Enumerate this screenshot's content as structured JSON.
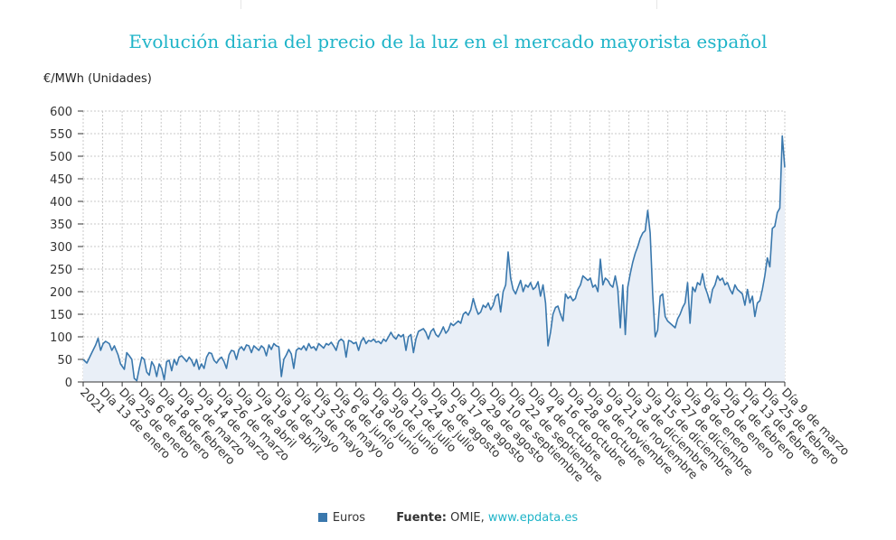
{
  "title": "Evolución diaria del precio de la luz en el mercado mayorista español",
  "unit_label": "€/MWh (Unidades)",
  "legend": {
    "series_label": "Euros",
    "source_label": "Fuente:",
    "source_name": "OMIE",
    "source_link": "www.epdata.es"
  },
  "colors": {
    "line": "#3a78ad",
    "area": "#e9eff7",
    "title": "#1fb4c8",
    "grid": "#c8c8c8"
  },
  "chart_data": {
    "type": "area",
    "title": "Evolución diaria del precio de la luz en el mercado mayorista español",
    "ylabel": "€/MWh (Unidades)",
    "xlabel": "",
    "ylim": [
      0,
      600
    ],
    "yticks": [
      0,
      50,
      100,
      150,
      200,
      250,
      300,
      350,
      400,
      450,
      500,
      550,
      600
    ],
    "grid": true,
    "legend": "bottom",
    "x_tick_labels": [
      "2021",
      "Día 13 de enero",
      "Día 25 de enero",
      "Día 6 de febrero",
      "Día 18 de febrero",
      "Día 2 de marzo",
      "Día 14 de marzo",
      "Día 26 de marzo",
      "Día 7 de abril",
      "Día 19 de abril",
      "Día 1 de mayo",
      "Día 13 de mayo",
      "Día 25 de mayo",
      "Día 6 de junio",
      "Día 18 de junio",
      "Día 30 de junio",
      "Día 12 de julio",
      "Día 24 de julio",
      "Día 5 de agosto",
      "Día 17 de agosto",
      "Día 29 de agosto",
      "Día 10 de septiembre",
      "Día 22 de septiembre",
      "Día 4 de octubre",
      "Día 16 de octubre",
      "Día 28 de octubre",
      "Día 9 de noviembre",
      "Día 21 de noviembre",
      "Día 3 de diciembre",
      "Día 15 de diciembre",
      "Día 27 de diciembre",
      "Día 8 de enero",
      "Día 20 de enero",
      "Día 1 de febrero",
      "Día 13 de febrero",
      "Día 25 de febrero",
      "Día 9 de marzo"
    ],
    "series": [
      {
        "name": "Euros",
        "points": [
          [
            0,
            50
          ],
          [
            3,
            42
          ],
          [
            7,
            65
          ],
          [
            10,
            82
          ],
          [
            12,
            97
          ],
          [
            14,
            70
          ],
          [
            16,
            85
          ],
          [
            18,
            90
          ],
          [
            21,
            85
          ],
          [
            23,
            70
          ],
          [
            25,
            80
          ],
          [
            28,
            60
          ],
          [
            30,
            40
          ],
          [
            33,
            28
          ],
          [
            35,
            65
          ],
          [
            37,
            58
          ],
          [
            39,
            50
          ],
          [
            41,
            8
          ],
          [
            43,
            3
          ],
          [
            45,
            30
          ],
          [
            47,
            55
          ],
          [
            49,
            50
          ],
          [
            51,
            22
          ],
          [
            53,
            15
          ],
          [
            55,
            45
          ],
          [
            57,
            35
          ],
          [
            59,
            12
          ],
          [
            61,
            40
          ],
          [
            63,
            30
          ],
          [
            65,
            5
          ],
          [
            67,
            45
          ],
          [
            69,
            48
          ],
          [
            71,
            25
          ],
          [
            73,
            50
          ],
          [
            75,
            38
          ],
          [
            77,
            55
          ],
          [
            79,
            58
          ],
          [
            81,
            52
          ],
          [
            83,
            45
          ],
          [
            85,
            55
          ],
          [
            87,
            48
          ],
          [
            89,
            35
          ],
          [
            91,
            50
          ],
          [
            93,
            28
          ],
          [
            95,
            40
          ],
          [
            97,
            30
          ],
          [
            99,
            55
          ],
          [
            101,
            65
          ],
          [
            103,
            63
          ],
          [
            105,
            48
          ],
          [
            107,
            42
          ],
          [
            109,
            50
          ],
          [
            111,
            55
          ],
          [
            113,
            45
          ],
          [
            115,
            30
          ],
          [
            117,
            60
          ],
          [
            119,
            70
          ],
          [
            121,
            68
          ],
          [
            123,
            50
          ],
          [
            125,
            72
          ],
          [
            127,
            78
          ],
          [
            129,
            70
          ],
          [
            131,
            82
          ],
          [
            133,
            80
          ],
          [
            135,
            65
          ],
          [
            137,
            80
          ],
          [
            139,
            75
          ],
          [
            141,
            70
          ],
          [
            143,
            80
          ],
          [
            145,
            75
          ],
          [
            147,
            58
          ],
          [
            149,
            82
          ],
          [
            151,
            72
          ],
          [
            153,
            85
          ],
          [
            155,
            80
          ],
          [
            157,
            78
          ],
          [
            159,
            12
          ],
          [
            161,
            50
          ],
          [
            163,
            60
          ],
          [
            165,
            72
          ],
          [
            167,
            62
          ],
          [
            169,
            30
          ],
          [
            171,
            70
          ],
          [
            173,
            75
          ],
          [
            175,
            72
          ],
          [
            177,
            80
          ],
          [
            179,
            70
          ],
          [
            181,
            85
          ],
          [
            183,
            75
          ],
          [
            185,
            78
          ],
          [
            187,
            70
          ],
          [
            189,
            85
          ],
          [
            191,
            80
          ],
          [
            193,
            75
          ],
          [
            195,
            85
          ],
          [
            197,
            82
          ],
          [
            199,
            88
          ],
          [
            201,
            80
          ],
          [
            203,
            70
          ],
          [
            205,
            90
          ],
          [
            207,
            95
          ],
          [
            209,
            90
          ],
          [
            211,
            55
          ],
          [
            213,
            92
          ],
          [
            215,
            90
          ],
          [
            217,
            85
          ],
          [
            219,
            88
          ],
          [
            221,
            70
          ],
          [
            223,
            90
          ],
          [
            225,
            98
          ],
          [
            227,
            85
          ],
          [
            229,
            92
          ],
          [
            231,
            90
          ],
          [
            233,
            95
          ],
          [
            235,
            88
          ],
          [
            237,
            90
          ],
          [
            239,
            85
          ],
          [
            241,
            95
          ],
          [
            243,
            90
          ],
          [
            245,
            100
          ],
          [
            247,
            110
          ],
          [
            249,
            100
          ],
          [
            251,
            95
          ],
          [
            253,
            105
          ],
          [
            255,
            100
          ],
          [
            257,
            105
          ],
          [
            259,
            70
          ],
          [
            261,
            100
          ],
          [
            263,
            105
          ],
          [
            265,
            65
          ],
          [
            267,
            95
          ],
          [
            269,
            112
          ],
          [
            271,
            115
          ],
          [
            273,
            118
          ],
          [
            275,
            110
          ],
          [
            277,
            95
          ],
          [
            279,
            112
          ],
          [
            281,
            118
          ],
          [
            283,
            105
          ],
          [
            285,
            100
          ],
          [
            287,
            110
          ],
          [
            289,
            122
          ],
          [
            291,
            108
          ],
          [
            293,
            115
          ],
          [
            295,
            130
          ],
          [
            297,
            125
          ],
          [
            299,
            130
          ],
          [
            301,
            135
          ],
          [
            303,
            130
          ],
          [
            305,
            150
          ],
          [
            307,
            155
          ],
          [
            309,
            148
          ],
          [
            311,
            160
          ],
          [
            313,
            185
          ],
          [
            315,
            165
          ],
          [
            317,
            150
          ],
          [
            319,
            155
          ],
          [
            321,
            170
          ],
          [
            323,
            165
          ],
          [
            325,
            175
          ],
          [
            327,
            160
          ],
          [
            329,
            170
          ],
          [
            331,
            190
          ],
          [
            333,
            195
          ],
          [
            335,
            155
          ],
          [
            337,
            200
          ],
          [
            339,
            215
          ],
          [
            341,
            288
          ],
          [
            343,
            230
          ],
          [
            345,
            205
          ],
          [
            347,
            195
          ],
          [
            349,
            210
          ],
          [
            351,
            225
          ],
          [
            353,
            200
          ],
          [
            355,
            215
          ],
          [
            357,
            210
          ],
          [
            359,
            220
          ],
          [
            361,
            205
          ],
          [
            363,
            210
          ],
          [
            365,
            222
          ],
          [
            367,
            190
          ],
          [
            369,
            215
          ],
          [
            371,
            175
          ],
          [
            373,
            80
          ],
          [
            375,
            110
          ],
          [
            377,
            150
          ],
          [
            379,
            165
          ],
          [
            381,
            168
          ],
          [
            383,
            150
          ],
          [
            385,
            135
          ],
          [
            387,
            195
          ],
          [
            389,
            185
          ],
          [
            391,
            190
          ],
          [
            393,
            180
          ],
          [
            395,
            185
          ],
          [
            397,
            205
          ],
          [
            399,
            215
          ],
          [
            401,
            235
          ],
          [
            403,
            230
          ],
          [
            405,
            225
          ],
          [
            407,
            230
          ],
          [
            409,
            210
          ],
          [
            411,
            215
          ],
          [
            413,
            200
          ],
          [
            415,
            272
          ],
          [
            417,
            215
          ],
          [
            419,
            230
          ],
          [
            421,
            225
          ],
          [
            423,
            215
          ],
          [
            425,
            210
          ],
          [
            427,
            235
          ],
          [
            429,
            205
          ],
          [
            431,
            120
          ],
          [
            433,
            215
          ],
          [
            435,
            105
          ],
          [
            437,
            210
          ],
          [
            439,
            240
          ],
          [
            441,
            265
          ],
          [
            443,
            285
          ],
          [
            445,
            300
          ],
          [
            447,
            318
          ],
          [
            449,
            330
          ],
          [
            451,
            335
          ],
          [
            453,
            380
          ],
          [
            455,
            330
          ],
          [
            457,
            195
          ],
          [
            459,
            100
          ],
          [
            461,
            115
          ],
          [
            463,
            190
          ],
          [
            465,
            195
          ],
          [
            467,
            145
          ],
          [
            469,
            135
          ],
          [
            471,
            130
          ],
          [
            473,
            125
          ],
          [
            475,
            120
          ],
          [
            477,
            140
          ],
          [
            479,
            150
          ],
          [
            481,
            165
          ],
          [
            483,
            175
          ],
          [
            485,
            220
          ],
          [
            487,
            130
          ],
          [
            489,
            210
          ],
          [
            491,
            200
          ],
          [
            493,
            220
          ],
          [
            495,
            215
          ],
          [
            497,
            240
          ],
          [
            499,
            210
          ],
          [
            501,
            195
          ],
          [
            503,
            175
          ],
          [
            505,
            205
          ],
          [
            507,
            215
          ],
          [
            509,
            235
          ],
          [
            511,
            225
          ],
          [
            513,
            230
          ],
          [
            515,
            215
          ],
          [
            517,
            220
          ],
          [
            519,
            205
          ],
          [
            521,
            195
          ],
          [
            523,
            215
          ],
          [
            525,
            205
          ],
          [
            527,
            200
          ],
          [
            529,
            195
          ],
          [
            531,
            170
          ],
          [
            533,
            205
          ],
          [
            535,
            175
          ],
          [
            537,
            190
          ],
          [
            539,
            145
          ],
          [
            541,
            175
          ],
          [
            543,
            180
          ],
          [
            545,
            205
          ],
          [
            547,
            235
          ],
          [
            549,
            275
          ],
          [
            551,
            255
          ],
          [
            553,
            340
          ],
          [
            555,
            345
          ],
          [
            557,
            375
          ],
          [
            559,
            385
          ],
          [
            561,
            545
          ],
          [
            563,
            475
          ]
        ]
      }
    ]
  }
}
